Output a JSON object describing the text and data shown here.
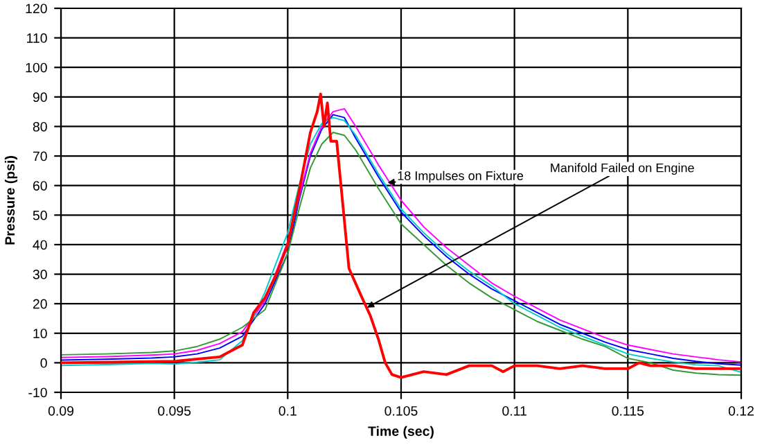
{
  "chart_data": {
    "type": "line",
    "xlabel": "Time (sec)",
    "ylabel": "Pressure (psi)",
    "x": [
      0.09,
      0.092,
      0.094,
      0.095,
      0.096,
      0.097,
      0.098,
      0.099,
      0.1,
      0.1005,
      0.101,
      0.1015,
      0.102,
      0.1025,
      0.103,
      0.104,
      0.105,
      0.106,
      0.107,
      0.108,
      0.109,
      0.11,
      0.111,
      0.112,
      0.113,
      0.114,
      0.115,
      0.116,
      0.117,
      0.118,
      0.119,
      0.12
    ],
    "series": [
      {
        "color": "#0000ff",
        "values": [
          0.9,
          1.2,
          1.6,
          2,
          3,
          5,
          9,
          20,
          37,
          55,
          70,
          79,
          84,
          83,
          76,
          63,
          51,
          43,
          36,
          30,
          25,
          21,
          17,
          13,
          10,
          7,
          4.5,
          3,
          1.5,
          0.5,
          -0.3,
          -0.8
        ]
      },
      {
        "color": "#ff00ff",
        "values": [
          1.8,
          2.1,
          2.6,
          3,
          4.2,
          6.5,
          10.5,
          21,
          41,
          56,
          71,
          80,
          85,
          86,
          80,
          67,
          55,
          46,
          39,
          33,
          27,
          22.5,
          18.5,
          14.5,
          11.5,
          8.5,
          6,
          4.5,
          3,
          2,
          1,
          0.3
        ]
      },
      {
        "color": "#00cccc",
        "values": [
          -0.9,
          -0.6,
          -0.2,
          -0.4,
          0.2,
          1,
          7.5,
          24,
          44,
          60,
          74,
          81,
          83,
          82,
          77,
          64,
          52,
          44,
          37,
          31,
          26,
          20,
          16,
          12,
          9,
          6,
          3,
          1.5,
          0.3,
          -0.7,
          -1,
          -3.2
        ]
      },
      {
        "color": "#339933",
        "values": [
          2.7,
          3,
          3.5,
          4,
          5.5,
          8,
          12,
          18,
          37,
          52,
          66,
          74,
          78,
          77,
          72,
          59,
          47,
          40,
          33,
          27,
          22,
          18,
          14,
          11,
          8,
          5.5,
          1.5,
          0,
          -2.5,
          -3.5,
          -4,
          -4.2
        ]
      },
      {
        "color": "#ff0000",
        "x": [
          0.09,
          0.095,
          0.097,
          0.098,
          0.0985,
          0.099,
          0.0995,
          0.1,
          0.1005,
          0.101,
          0.1013,
          0.10145,
          0.1016,
          0.10175,
          0.1019,
          0.10216,
          0.10245,
          0.1027,
          0.10322,
          0.10364,
          0.104,
          0.1043,
          0.1046,
          0.105,
          0.106,
          0.107,
          0.108,
          0.109,
          0.1095,
          0.11,
          0.111,
          0.112,
          0.113,
          0.114,
          0.115,
          0.1155,
          0.116,
          0.117,
          0.118,
          0.119,
          0.12
        ],
        "values": [
          0,
          0.5,
          2,
          6,
          17,
          22,
          30,
          40,
          58,
          78,
          85,
          91,
          80,
          88,
          75,
          75,
          52,
          32,
          23,
          16,
          8,
          0,
          -4,
          -5,
          -3,
          -4,
          -1,
          -1,
          -3,
          -1,
          -1,
          -2,
          -1,
          -2,
          -2,
          0,
          -1,
          -1,
          -2,
          -2,
          -2
        ]
      }
    ],
    "annotations": [
      {
        "text": "18 Impulses on Fixture",
        "x": 0.1044,
        "y": 61
      },
      {
        "text": "Manifold Failed on Engine",
        "x": 0.1035,
        "y": 18.7
      }
    ],
    "xlim": [
      0.09,
      0.12
    ],
    "xticks": [
      0.09,
      0.095,
      0.1,
      0.105,
      0.11,
      0.115,
      0.12
    ],
    "ylim": [
      -10,
      120
    ],
    "yticks": [
      -10,
      0,
      10,
      20,
      30,
      40,
      50,
      60,
      70,
      80,
      90,
      100,
      110,
      120
    ],
    "grid": true,
    "line_style": "solid"
  }
}
